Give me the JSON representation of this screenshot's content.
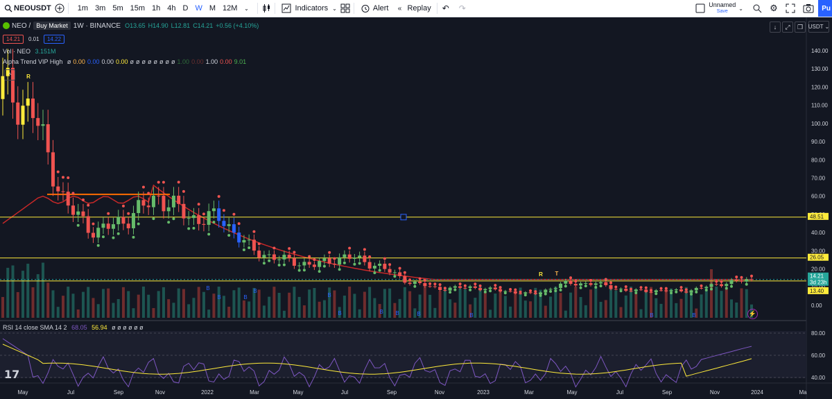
{
  "toolbar": {
    "symbol": "NEOUSDT",
    "timeframes": [
      "1m",
      "3m",
      "5m",
      "15m",
      "1h",
      "4h",
      "D",
      "W",
      "M",
      "12M"
    ],
    "active_timeframe": "W",
    "indicators_label": "Indicators",
    "alert_label": "Alert",
    "replay_label": "Replay",
    "layout_name": "Unnamed",
    "layout_save": "Save",
    "publish_label": "Pu"
  },
  "legend": {
    "symbol_short": "NEO /",
    "buy_market": "Buy Market",
    "interval_exchange": "1W · BINANCE",
    "open": "O13.65",
    "high": "H14.90",
    "low": "L12.81",
    "close": "C14.21",
    "change": "+0.56 (+4.10%)",
    "sell_price": "14.21",
    "spread": "0.01",
    "buy_price": "14.22",
    "vol_label": "Vol · NEO",
    "vol_value": "3.151M",
    "alpha_name": "Alpha Trend VIP High",
    "alpha_values": [
      {
        "t": "ø",
        "c": "#d1d4dc"
      },
      {
        "t": "0.00",
        "c": "#ffb74d"
      },
      {
        "t": "0.00",
        "c": "#2962ff"
      },
      {
        "t": "0.00",
        "c": "#d1d4dc"
      },
      {
        "t": "0.00",
        "c": "#ffeb3b"
      },
      {
        "t": "ø",
        "c": "#d1d4dc"
      },
      {
        "t": "ø",
        "c": "#d1d4dc"
      },
      {
        "t": "ø",
        "c": "#d1d4dc"
      },
      {
        "t": "ø",
        "c": "#d1d4dc"
      },
      {
        "t": "ø",
        "c": "#d1d4dc"
      },
      {
        "t": "ø",
        "c": "#d1d4dc"
      },
      {
        "t": "ø",
        "c": "#d1d4dc"
      },
      {
        "t": "ø",
        "c": "#d1d4dc"
      },
      {
        "t": "1.00",
        "c": "#2f6b3a"
      },
      {
        "t": "0.00",
        "c": "#6b2f2f"
      },
      {
        "t": "1.00",
        "c": "#d1d4dc"
      },
      {
        "t": "0.00",
        "c": "#ef5350"
      },
      {
        "t": "9.01",
        "c": "#4caf50"
      }
    ],
    "rsi_name": "RSI 14 close SMA 14 2",
    "rsi_value": "68.05",
    "rsi_sma": "56.94",
    "rsi_rest": "ø ø ø ø ø ø"
  },
  "price_axis": {
    "currency": "USDT",
    "ticks": [
      "140.00",
      "130.00",
      "120.00",
      "110.00",
      "100.00",
      "90.00",
      "80.00",
      "70.00",
      "60.00",
      "50.00",
      "40.00",
      "30.00",
      "20.00",
      "10.00",
      "0.00"
    ],
    "rsi_ticks": [
      "80.00",
      "60.00",
      "40.00"
    ],
    "labels": [
      {
        "text": "48.51",
        "bg": "#ffeb3b",
        "fg": "#131722"
      },
      {
        "text": "26.05",
        "bg": "#ffeb3b",
        "fg": "#131722"
      },
      {
        "text": "14.21",
        "bg": "#26a69a",
        "fg": "#ffffff"
      },
      {
        "text": "3d 23h",
        "bg": "#26a69a",
        "fg": "#ffffff"
      },
      {
        "text": "13.40",
        "bg": "#ffeb3b",
        "fg": "#131722"
      }
    ]
  },
  "time_axis": [
    "May",
    "Jul",
    "Sep",
    "Nov",
    "2022",
    "Mar",
    "May",
    "Jul",
    "Sep",
    "Nov",
    "2023",
    "Mar",
    "May",
    "Jul",
    "Sep",
    "Nov",
    "2024",
    "Ma"
  ],
  "markers": {
    "b": "B",
    "r": "R",
    "t": "T"
  },
  "colors": {
    "up": "#26a69a",
    "down": "#ef5350",
    "bull_candle": "#66bb6a",
    "bear_candle": "#ef5350",
    "yellow": "#ffeb3b",
    "trend": "#c62828",
    "resistance": "#ff6d00",
    "rsi": "#7e57c2",
    "rsi_sma": "#ffeb3b"
  },
  "chart_data": {
    "type": "candlestick",
    "symbol": "NEOUSDT",
    "interval": "1W",
    "exchange": "BINANCE",
    "last": {
      "open": 13.65,
      "high": 14.9,
      "low": 12.81,
      "close": 14.21,
      "change": 0.56,
      "change_pct": 4.1
    },
    "horizontal_levels": [
      48.51,
      26.05,
      13.4
    ],
    "resistance_level": 61,
    "ylim": [
      0,
      145
    ],
    "rsi": {
      "value": 68.05,
      "sma": 56.94,
      "ylim": [
        20,
        90
      ]
    },
    "close_path": [
      {
        "date": "2021-04",
        "close": 120
      },
      {
        "date": "2021-05",
        "close": 105
      },
      {
        "date": "2021-06",
        "close": 55
      },
      {
        "date": "2021-07",
        "close": 40
      },
      {
        "date": "2021-08",
        "close": 48
      },
      {
        "date": "2021-09",
        "close": 60
      },
      {
        "date": "2021-10",
        "close": 48
      },
      {
        "date": "2021-11",
        "close": 48
      },
      {
        "date": "2021-12",
        "close": 30
      },
      {
        "date": "2022-01",
        "close": 25
      },
      {
        "date": "2022-02",
        "close": 22
      },
      {
        "date": "2022-03",
        "close": 27
      },
      {
        "date": "2022-04",
        "close": 22
      },
      {
        "date": "2022-05",
        "close": 13
      },
      {
        "date": "2022-06",
        "close": 9
      },
      {
        "date": "2022-08",
        "close": 10
      },
      {
        "date": "2022-10",
        "close": 8
      },
      {
        "date": "2022-12",
        "close": 6
      },
      {
        "date": "2023-02",
        "close": 12
      },
      {
        "date": "2023-04",
        "close": 12
      },
      {
        "date": "2023-06",
        "close": 8
      },
      {
        "date": "2023-08",
        "close": 8
      },
      {
        "date": "2023-10",
        "close": 8
      },
      {
        "date": "2023-11",
        "close": 12
      },
      {
        "date": "2023-12",
        "close": 14.21
      }
    ]
  }
}
